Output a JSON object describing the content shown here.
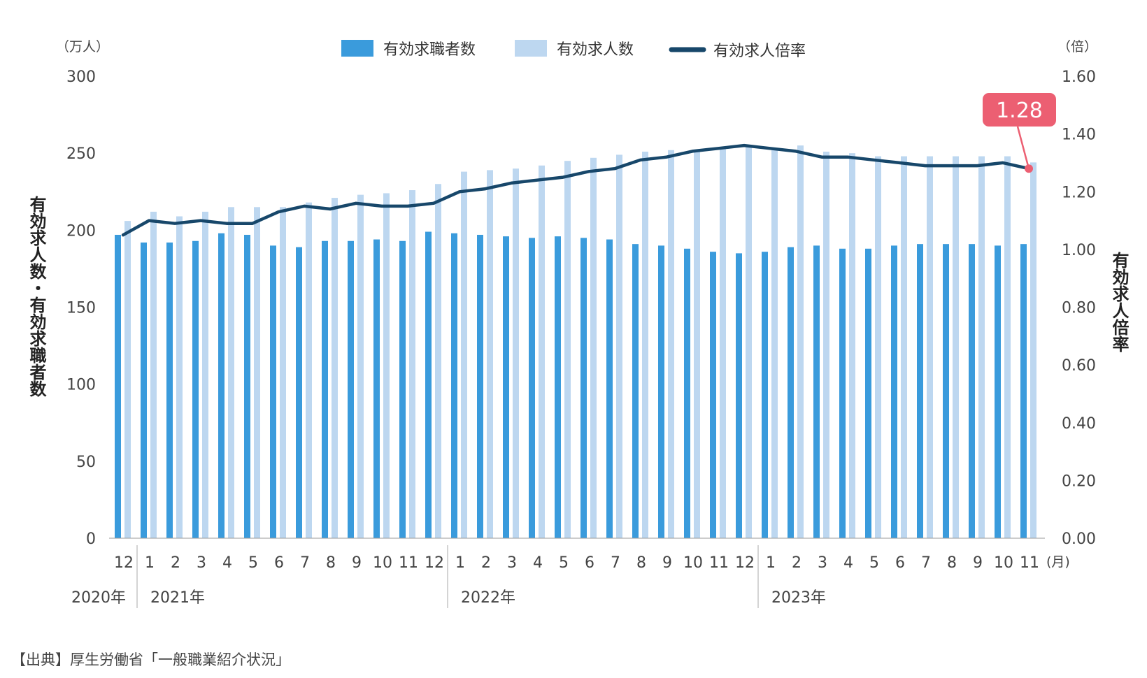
{
  "chart_data": {
    "type": "bar",
    "title": "",
    "legend": {
      "placement": "top",
      "entries": [
        {
          "name": "有効求職者数",
          "color": "#3a9bdc",
          "kind": "bar"
        },
        {
          "name": "有効求人数",
          "color": "#bdd7f0",
          "kind": "bar"
        },
        {
          "name": "有効求人倍率",
          "color": "#17476a",
          "kind": "line"
        }
      ]
    },
    "left_axis": {
      "unit": "（万人）",
      "title": "有効求人数・有効求職者数",
      "range": [
        0,
        300
      ],
      "ticks": [
        "0",
        "50",
        "100",
        "150",
        "200",
        "250",
        "300"
      ]
    },
    "right_axis": {
      "unit": "（倍）",
      "title": "有効求人倍率",
      "range": [
        0,
        1.6
      ],
      "ticks": [
        "0.00",
        "0.20",
        "0.40",
        "0.60",
        "0.80",
        "1.00",
        "1.20",
        "1.40",
        "1.60"
      ]
    },
    "categories": [
      "12",
      "1",
      "2",
      "3",
      "4",
      "5",
      "6",
      "7",
      "8",
      "9",
      "10",
      "11",
      "12",
      "1",
      "2",
      "3",
      "4",
      "5",
      "6",
      "7",
      "8",
      "9",
      "10",
      "11",
      "12",
      "1",
      "2",
      "3",
      "4",
      "5",
      "6",
      "7",
      "8",
      "9",
      "10",
      "11"
    ],
    "month_unit": "(月)",
    "years": [
      {
        "label": "2020年",
        "start": 0
      },
      {
        "label": "2021年",
        "start": 1
      },
      {
        "label": "2022年",
        "start": 13
      },
      {
        "label": "2023年",
        "start": 25
      }
    ],
    "series": [
      {
        "name": "有効求職者数",
        "axis": "left",
        "values": [
          197,
          192,
          192,
          193,
          198,
          197,
          190,
          189,
          193,
          193,
          194,
          193,
          199,
          198,
          197,
          196,
          195,
          196,
          195,
          194,
          191,
          190,
          188,
          186,
          185,
          186,
          189,
          190,
          188,
          188,
          190,
          191,
          191,
          191,
          190,
          191
        ]
      },
      {
        "name": "有効求人数",
        "axis": "left",
        "values": [
          206,
          212,
          209,
          212,
          215,
          215,
          215,
          218,
          221,
          223,
          224,
          226,
          230,
          238,
          239,
          240,
          242,
          245,
          247,
          249,
          251,
          252,
          251,
          253,
          254,
          253,
          255,
          251,
          250,
          248,
          248,
          248,
          248,
          248,
          248,
          244
        ]
      },
      {
        "name": "有効求人倍率",
        "axis": "right",
        "values": [
          1.05,
          1.1,
          1.09,
          1.1,
          1.09,
          1.09,
          1.13,
          1.15,
          1.14,
          1.16,
          1.15,
          1.15,
          1.16,
          1.2,
          1.21,
          1.23,
          1.24,
          1.25,
          1.27,
          1.28,
          1.31,
          1.32,
          1.34,
          1.35,
          1.36,
          1.35,
          1.34,
          1.32,
          1.32,
          1.31,
          1.3,
          1.29,
          1.29,
          1.29,
          1.3,
          1.28
        ]
      }
    ],
    "callout": {
      "label": "1.28",
      "color": "#ec5f72"
    },
    "grid": false
  },
  "source": "【出典】厚生労働省「一般職業紹介状況」"
}
